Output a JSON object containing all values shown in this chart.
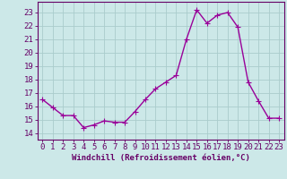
{
  "x": [
    0,
    1,
    2,
    3,
    4,
    5,
    6,
    7,
    8,
    9,
    10,
    11,
    12,
    13,
    14,
    15,
    16,
    17,
    18,
    19,
    20,
    21,
    22,
    23
  ],
  "y": [
    16.5,
    15.9,
    15.3,
    15.3,
    14.4,
    14.6,
    14.9,
    14.8,
    14.8,
    15.6,
    16.5,
    17.3,
    17.8,
    18.3,
    21.0,
    23.2,
    22.2,
    22.8,
    23.0,
    21.9,
    17.8,
    16.4,
    15.1,
    15.1
  ],
  "line_color": "#990099",
  "marker_color": "#990099",
  "bg_color": "#cce8e8",
  "grid_color": "#aacccc",
  "xlabel": "Windchill (Refroidissement éolien,°C)",
  "ylabel_ticks": [
    14,
    15,
    16,
    17,
    18,
    19,
    20,
    21,
    22,
    23
  ],
  "ylim": [
    13.5,
    23.8
  ],
  "xlim": [
    -0.5,
    23.5
  ],
  "xticks": [
    0,
    1,
    2,
    3,
    4,
    5,
    6,
    7,
    8,
    9,
    10,
    11,
    12,
    13,
    14,
    15,
    16,
    17,
    18,
    19,
    20,
    21,
    22,
    23
  ],
  "xlabel_fontsize": 6.5,
  "tick_fontsize": 6.5,
  "axis_color": "#660066",
  "linewidth": 1.0,
  "markersize": 2.0
}
